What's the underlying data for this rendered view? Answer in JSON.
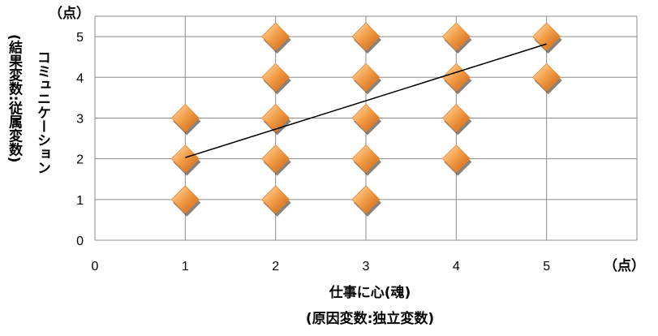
{
  "chart_data": {
    "type": "scatter",
    "title": "",
    "x_unit": "（点）",
    "y_unit": "（点）",
    "xlabel": "仕事に心(魂)",
    "xlabel_sub": "(原因変数:独立変数)",
    "ylabel": "コミュニケーション",
    "ylabel_sub": "(結果変数:従属変数)",
    "xlim": [
      0,
      6
    ],
    "ylim": [
      0,
      5.5
    ],
    "x_ticks": [
      0,
      1,
      2,
      3,
      4,
      5
    ],
    "y_ticks": [
      0,
      1,
      2,
      3,
      4,
      5
    ],
    "grid": true,
    "legend": "none",
    "marker": "diamond",
    "marker_color": "#E8832A",
    "points": [
      {
        "x": 1,
        "y": 1
      },
      {
        "x": 1,
        "y": 2
      },
      {
        "x": 1,
        "y": 3
      },
      {
        "x": 2,
        "y": 1
      },
      {
        "x": 2,
        "y": 2
      },
      {
        "x": 2,
        "y": 3
      },
      {
        "x": 2,
        "y": 4
      },
      {
        "x": 2,
        "y": 5
      },
      {
        "x": 3,
        "y": 1
      },
      {
        "x": 3,
        "y": 2
      },
      {
        "x": 3,
        "y": 3
      },
      {
        "x": 3,
        "y": 4
      },
      {
        "x": 3,
        "y": 5
      },
      {
        "x": 4,
        "y": 2
      },
      {
        "x": 4,
        "y": 3
      },
      {
        "x": 4,
        "y": 4
      },
      {
        "x": 4,
        "y": 5
      },
      {
        "x": 5,
        "y": 4
      },
      {
        "x": 5,
        "y": 5
      }
    ],
    "trendline": {
      "x": [
        1,
        5
      ],
      "y": [
        2.03,
        4.82
      ]
    }
  }
}
